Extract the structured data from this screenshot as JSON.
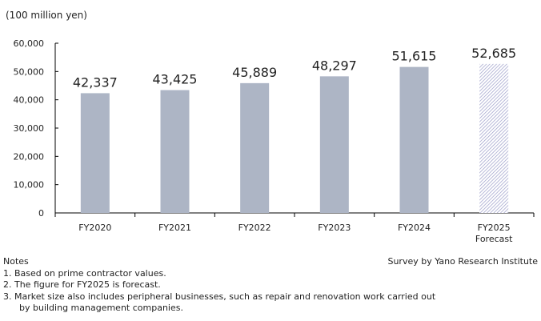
{
  "chart_data": {
    "type": "bar",
    "unit_label": "(100 million yen)",
    "categories": [
      [
        "FY2020"
      ],
      [
        "FY2021"
      ],
      [
        "FY2022"
      ],
      [
        "FY2023"
      ],
      [
        "FY2024"
      ],
      [
        "FY2025",
        "Forecast"
      ]
    ],
    "values": [
      42337,
      43425,
      45889,
      48297,
      51615,
      52685
    ],
    "data_labels": [
      "42,337",
      "43,425",
      "45,889",
      "48,297",
      "51,615",
      "52,685"
    ],
    "forecast": [
      false,
      false,
      false,
      false,
      false,
      true
    ],
    "ylim": [
      0,
      60000
    ],
    "yticks": [
      0,
      10000,
      20000,
      30000,
      40000,
      50000,
      60000
    ],
    "ytick_labels": [
      "0",
      "10,000",
      "20,000",
      "30,000",
      "40,000",
      "50,000",
      "60,000"
    ],
    "grid": false,
    "colors": {
      "bar": "#adb5c5",
      "forecast_hatch": "#9a9cc8"
    }
  },
  "notes": {
    "heading": "Notes",
    "items": [
      "1. Based on prime contractor values.",
      "2. The figure for FY2025 is forecast.",
      "3. Market size also includes peripheral businesses, such as repair and renovation work carried out",
      "    by building management companies."
    ]
  },
  "source": "Survey by Yano Research Institute"
}
